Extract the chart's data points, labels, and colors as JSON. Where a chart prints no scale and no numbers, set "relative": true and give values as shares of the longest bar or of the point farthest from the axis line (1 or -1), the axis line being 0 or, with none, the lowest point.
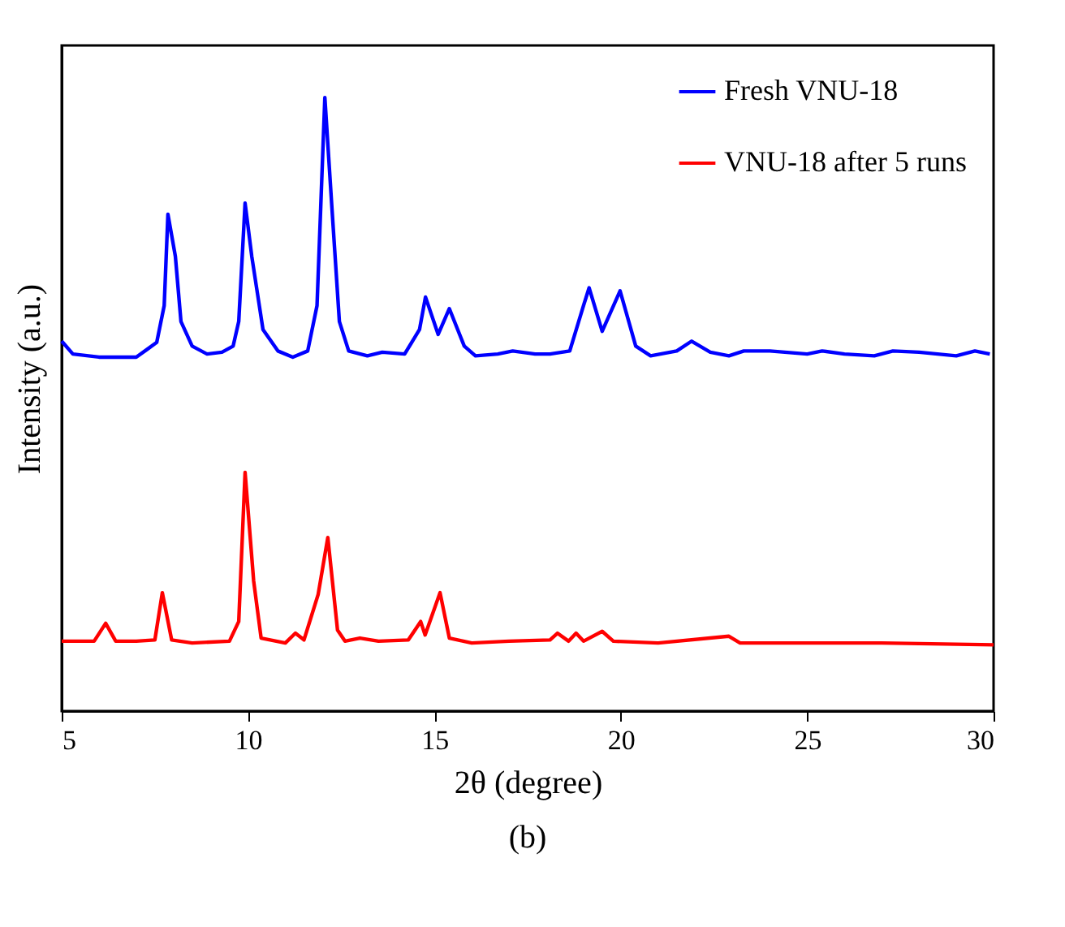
{
  "chart_data": {
    "type": "line",
    "relative": true,
    "xlabel": "2θ (degree)",
    "ylabel": "Intensity (a.u.)",
    "annotations": [
      "(b)"
    ],
    "xlim": [
      5,
      30
    ],
    "xticks": [
      5,
      10,
      15,
      20,
      25,
      30
    ],
    "legend": "top right",
    "grid": false,
    "marker": "none",
    "line_style": "solid",
    "series": [
      {
        "name": "Fresh VNU-18",
        "color": "#0000ff",
        "x": [
          5.0,
          5.3,
          6.0,
          7.0,
          7.3,
          7.55,
          7.75,
          7.85,
          8.05,
          8.2,
          8.5,
          8.9,
          9.3,
          9.6,
          9.75,
          9.92,
          10.1,
          10.4,
          10.8,
          11.2,
          11.6,
          11.85,
          12.06,
          12.25,
          12.45,
          12.7,
          13.2,
          13.6,
          14.2,
          14.6,
          14.76,
          15.1,
          15.4,
          15.8,
          16.1,
          16.7,
          17.1,
          17.7,
          18.1,
          18.63,
          19.0,
          19.15,
          19.5,
          19.98,
          20.4,
          20.8,
          21.5,
          21.9,
          22.4,
          22.9,
          23.3,
          24.0,
          25.0,
          25.4,
          26.0,
          26.8,
          27.3,
          28.0,
          29.0,
          29.5,
          29.9
        ],
        "values": [
          0.603,
          0.582,
          0.577,
          0.577,
          0.59,
          0.601,
          0.661,
          0.81,
          0.741,
          0.635,
          0.595,
          0.582,
          0.585,
          0.595,
          0.635,
          0.828,
          0.741,
          0.622,
          0.587,
          0.577,
          0.587,
          0.661,
          1.0,
          0.82,
          0.635,
          0.587,
          0.579,
          0.585,
          0.582,
          0.622,
          0.675,
          0.614,
          0.656,
          0.595,
          0.579,
          0.582,
          0.587,
          0.582,
          0.582,
          0.587,
          0.661,
          0.69,
          0.619,
          0.685,
          0.595,
          0.579,
          0.587,
          0.603,
          0.585,
          0.579,
          0.587,
          0.587,
          0.582,
          0.587,
          0.582,
          0.579,
          0.587,
          0.585,
          0.579,
          0.587,
          0.582
        ]
      },
      {
        "name": "VNU-18 after 5 runs",
        "color": "#ff0000",
        "x": [
          5.0,
          5.87,
          6.18,
          6.45,
          7.0,
          7.5,
          7.7,
          7.95,
          8.5,
          9.5,
          9.75,
          9.92,
          10.15,
          10.35,
          11.0,
          11.27,
          11.5,
          11.88,
          12.14,
          12.4,
          12.6,
          13.0,
          13.5,
          14.3,
          14.63,
          14.75,
          15.15,
          15.4,
          16.0,
          17.0,
          18.1,
          18.3,
          18.6,
          18.8,
          19.0,
          19.5,
          19.8,
          21.0,
          22.9,
          23.2,
          25.0,
          27.0,
          30.0
        ],
        "values": [
          0.114,
          0.114,
          0.143,
          0.114,
          0.114,
          0.116,
          0.193,
          0.116,
          0.111,
          0.114,
          0.146,
          0.389,
          0.212,
          0.119,
          0.111,
          0.127,
          0.116,
          0.19,
          0.283,
          0.132,
          0.114,
          0.119,
          0.114,
          0.116,
          0.146,
          0.124,
          0.193,
          0.119,
          0.111,
          0.114,
          0.116,
          0.127,
          0.114,
          0.127,
          0.114,
          0.13,
          0.114,
          0.111,
          0.122,
          0.111,
          0.111,
          0.111,
          0.108
        ]
      }
    ]
  }
}
